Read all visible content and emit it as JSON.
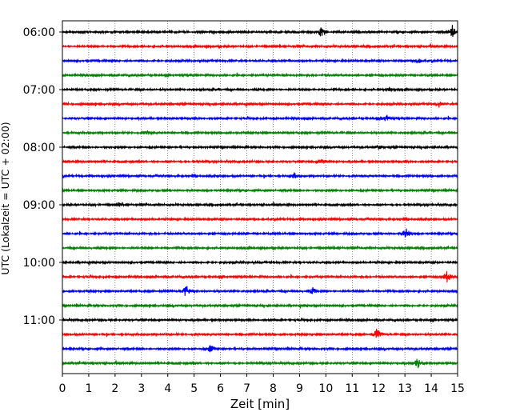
{
  "chart_data": {
    "type": "line",
    "title": "",
    "xlabel": "Zeit  [min]",
    "ylabel": "UTC (Lokalzeit = UTC + 02:00)",
    "xlim": [
      0,
      15
    ],
    "x_ticks": [
      0,
      1,
      2,
      3,
      4,
      5,
      6,
      7,
      8,
      9,
      10,
      11,
      12,
      13,
      14,
      15
    ],
    "grid": "vertical dotted lines at each minute",
    "line_start_hour_utc": "06:00",
    "line_interval_minutes": 15,
    "line_count": 24,
    "y_tick_labels": [
      {
        "label": "06:00",
        "line_index": 0
      },
      {
        "label": "07:00",
        "line_index": 4
      },
      {
        "label": "08:00",
        "line_index": 8
      },
      {
        "label": "09:00",
        "line_index": 12
      },
      {
        "label": "10:00",
        "line_index": 16
      },
      {
        "label": "11:00",
        "line_index": 20
      }
    ],
    "color_cycle": [
      "#000000",
      "#ff0000",
      "#0000ff",
      "#008000"
    ],
    "events": [
      {
        "line_index": 0,
        "minute": 9.85,
        "amplitude": 1.0
      },
      {
        "line_index": 0,
        "minute": 14.8,
        "amplitude": 0.9
      },
      {
        "line_index": 2,
        "minute": 13.5,
        "amplitude": 0.5
      },
      {
        "line_index": 4,
        "minute": 12.4,
        "amplitude": 0.35
      },
      {
        "line_index": 5,
        "minute": 14.3,
        "amplitude": 0.4
      },
      {
        "line_index": 6,
        "minute": 12.3,
        "amplitude": 0.55
      },
      {
        "line_index": 7,
        "minute": 3.25,
        "amplitude": 0.35
      },
      {
        "line_index": 8,
        "minute": 12.0,
        "amplitude": 0.35
      },
      {
        "line_index": 9,
        "minute": 9.85,
        "amplitude": 0.4
      },
      {
        "line_index": 10,
        "minute": 8.8,
        "amplitude": 0.35
      },
      {
        "line_index": 12,
        "minute": 2.15,
        "amplitude": 0.35
      },
      {
        "line_index": 14,
        "minute": 13.05,
        "amplitude": 0.85
      },
      {
        "line_index": 17,
        "minute": 14.6,
        "amplitude": 1.0
      },
      {
        "line_index": 18,
        "minute": 4.7,
        "amplitude": 0.9
      },
      {
        "line_index": 18,
        "minute": 9.5,
        "amplitude": 0.5
      },
      {
        "line_index": 21,
        "minute": 11.95,
        "amplitude": 0.9
      },
      {
        "line_index": 22,
        "minute": 5.65,
        "amplitude": 0.75
      },
      {
        "line_index": 23,
        "minute": 13.5,
        "amplitude": 0.85
      }
    ]
  }
}
